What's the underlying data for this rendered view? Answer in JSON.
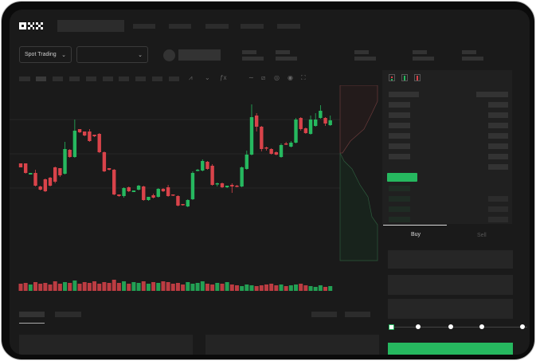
{
  "header": {
    "logo": "OKX"
  },
  "toolbar": {
    "market_dropdown": "Spot Trading",
    "pair_dropdown": ""
  },
  "trade": {
    "buy_tab": "Buy",
    "sell_tab": "Sell",
    "leverage_steps": 5,
    "selected_step": 0
  },
  "colors": {
    "up": "#26b85f",
    "down": "#d9434a",
    "background": "#1a1a1a"
  },
  "chart_data": {
    "type": "candlestick",
    "candles": [
      [
        57,
        52,
        57,
        52
      ],
      [
        57,
        45,
        57,
        44
      ],
      [
        43,
        45,
        45,
        43
      ],
      [
        45,
        29,
        49,
        28
      ],
      [
        28,
        24,
        29,
        23
      ],
      [
        37,
        22,
        38,
        21
      ],
      [
        39,
        29,
        40,
        28
      ],
      [
        52,
        34,
        53,
        32
      ],
      [
        51,
        42,
        51,
        40
      ],
      [
        44,
        75,
        84,
        43
      ],
      [
        74,
        65,
        75,
        64
      ],
      [
        65,
        98,
        112,
        64
      ],
      [
        100,
        96,
        100,
        95
      ],
      [
        97,
        92,
        97,
        91
      ],
      [
        97,
        85,
        100,
        84
      ],
      [
        93,
        91,
        93,
        90
      ],
      [
        94,
        71,
        95,
        70
      ],
      [
        71,
        47,
        72,
        46
      ],
      [
        51,
        49,
        51,
        48
      ],
      [
        49,
        18,
        50,
        17
      ],
      [
        18,
        16,
        18,
        15
      ],
      [
        16,
        26,
        27,
        14
      ],
      [
        27,
        22,
        28,
        21
      ],
      [
        21,
        23,
        23,
        21
      ],
      [
        24,
        29,
        30,
        23
      ],
      [
        28,
        11,
        29,
        10
      ],
      [
        11,
        15,
        15,
        10
      ],
      [
        17,
        14,
        19,
        13
      ],
      [
        15,
        25,
        26,
        14
      ],
      [
        25,
        22,
        26,
        21
      ],
      [
        27,
        16,
        30,
        15
      ],
      [
        18,
        17,
        18,
        16
      ],
      [
        16,
        4,
        17,
        3
      ],
      [
        6,
        5,
        6,
        4
      ],
      [
        3,
        11,
        12,
        2
      ],
      [
        12,
        45,
        47,
        11
      ],
      [
        48,
        49,
        50,
        47
      ],
      [
        48,
        60,
        62,
        47
      ],
      [
        59,
        50,
        60,
        49
      ],
      [
        54,
        30,
        56,
        29
      ],
      [
        31,
        32,
        33,
        28
      ],
      [
        32,
        27,
        33,
        26
      ],
      [
        27,
        29,
        29,
        26
      ],
      [
        30,
        28,
        32,
        20
      ],
      [
        29,
        28,
        30,
        27
      ],
      [
        28,
        52,
        53,
        27
      ],
      [
        50,
        68,
        73,
        49
      ],
      [
        68,
        115,
        131,
        67
      ],
      [
        117,
        103,
        120,
        97
      ],
      [
        103,
        75,
        104,
        72
      ],
      [
        77,
        76,
        78,
        73
      ],
      [
        75,
        69,
        76,
        68
      ],
      [
        71,
        68,
        72,
        67
      ],
      [
        65,
        80,
        82,
        64
      ],
      [
        82,
        81,
        84,
        80
      ],
      [
        78,
        83,
        85,
        77
      ],
      [
        83,
        112,
        114,
        82
      ],
      [
        114,
        100,
        115,
        98
      ],
      [
        101,
        95,
        102,
        94
      ],
      [
        94,
        112,
        117,
        93
      ],
      [
        104,
        112,
        120,
        103
      ],
      [
        114,
        123,
        130,
        113
      ],
      [
        114,
        107,
        115,
        104
      ],
      [
        105,
        111,
        117,
        104
      ]
    ],
    "volume": [
      9,
      10,
      8,
      11,
      9,
      10,
      8,
      12,
      9,
      11,
      10,
      13,
      9,
      11,
      10,
      12,
      9,
      11,
      10,
      14,
      10,
      12,
      9,
      11,
      10,
      12,
      9,
      11,
      10,
      12,
      11,
      9,
      10,
      8,
      11,
      9,
      10,
      12,
      9,
      8,
      10,
      9,
      11,
      8,
      7,
      6,
      8,
      7,
      6,
      7,
      8,
      9,
      7,
      8,
      6,
      7,
      8,
      9,
      7,
      6,
      5,
      7,
      5,
      6
    ]
  }
}
